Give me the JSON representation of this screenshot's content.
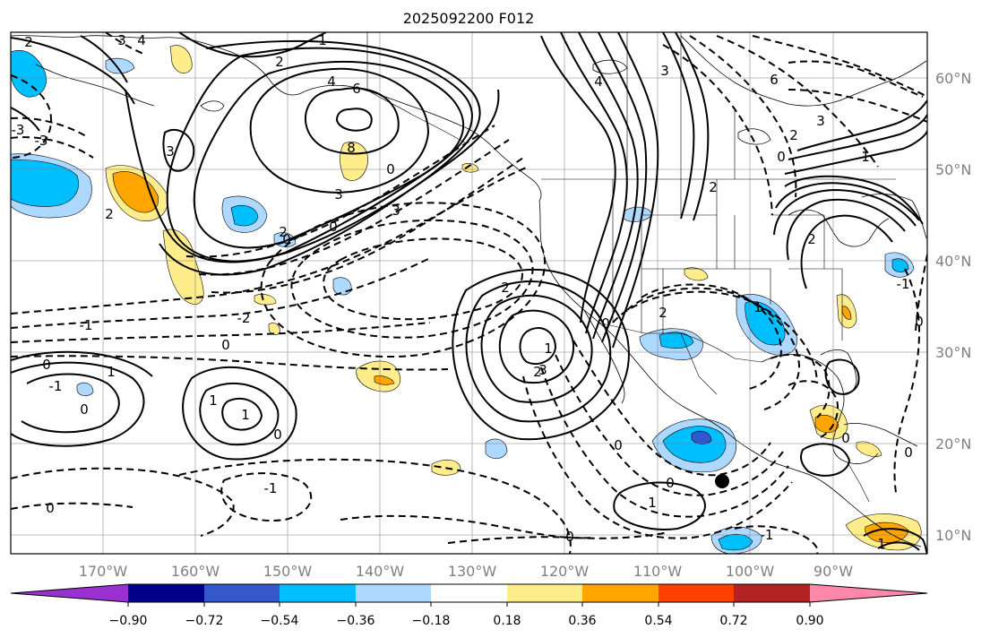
{
  "title": "2025092200 F012",
  "map": {
    "longitude_labels": [
      "170°W",
      "160°W",
      "150°W",
      "140°W",
      "130°W",
      "120°W",
      "110°W",
      "100°W",
      "90°W"
    ],
    "latitude_labels": [
      "60°N",
      "50°N",
      "40°N",
      "30°N",
      "20°N",
      "10°N"
    ],
    "grid": true,
    "marker": {
      "name": "black-dot",
      "lon": "103°W",
      "lat": "16°N"
    },
    "contour_labels": [
      "2",
      "1",
      "3",
      "4",
      "2",
      "4",
      "6",
      "8",
      "3",
      "0",
      "3",
      "3",
      "2",
      "0",
      "2",
      "0",
      "-3",
      "3",
      "4",
      "6",
      "3",
      "2",
      "0",
      "1",
      "2",
      "2",
      "2",
      "1",
      "0",
      "-1",
      "2",
      "-2",
      "0",
      "0",
      "-1",
      "0",
      "1",
      "2",
      "1",
      "0",
      "0",
      "1",
      "-1",
      "-1",
      "0",
      "0",
      "0",
      "-1",
      "0",
      "1",
      "0",
      "1",
      "0",
      "1",
      "-3",
      "3"
    ]
  },
  "colorbar": {
    "ticks": [
      "−0.90",
      "−0.72",
      "−0.54",
      "−0.36",
      "−0.18",
      "0.18",
      "0.36",
      "0.54",
      "0.72",
      "0.90"
    ],
    "colors": [
      "#9b30d0",
      "#00008b",
      "#3457cc",
      "#00bfff",
      "#add8ff",
      "#ffffff",
      "#ffec8b",
      "#ffa500",
      "#ff3f00",
      "#b22222",
      "#ff88aa"
    ]
  }
}
